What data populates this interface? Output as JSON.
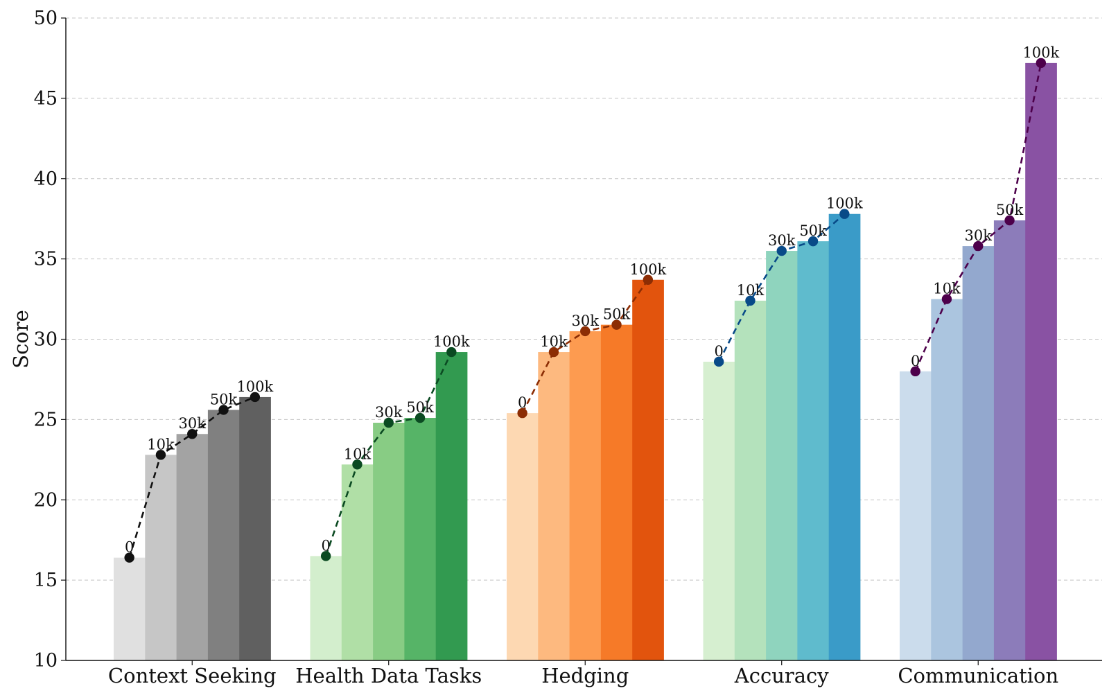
{
  "chart_data": {
    "type": "bar",
    "title": "",
    "xlabel": "",
    "ylabel": "Score",
    "ylim": [
      10,
      50
    ],
    "yticks": [
      10,
      15,
      20,
      25,
      30,
      35,
      40,
      45,
      50
    ],
    "grid": "horizontal dashed",
    "levels": [
      "0",
      "10k",
      "30k",
      "50k",
      "100k"
    ],
    "categories": [
      "Context Seeking",
      "Health Data Tasks",
      "Hedging",
      "Accuracy",
      "Communication"
    ],
    "groups": [
      {
        "category": "Context Seeking",
        "values": [
          16.4,
          22.8,
          24.1,
          25.6,
          26.4
        ],
        "bar_colors": [
          "#e0e0e0",
          "#c6c6c6",
          "#a3a3a3",
          "#808080",
          "#606060"
        ],
        "line_color": "#111111"
      },
      {
        "category": "Health Data Tasks",
        "values": [
          16.5,
          22.2,
          24.8,
          25.1,
          29.2
        ],
        "bar_colors": [
          "#d3eecd",
          "#b0dfa6",
          "#88cc84",
          "#56b467",
          "#329a50"
        ],
        "line_color": "#0b4a22"
      },
      {
        "category": "Hedging",
        "values": [
          25.4,
          29.2,
          30.5,
          30.9,
          33.7
        ],
        "bar_colors": [
          "#fdd8b2",
          "#fdb97f",
          "#fd9b50",
          "#f67a28",
          "#e2540d"
        ],
        "line_color": "#8c2d04"
      },
      {
        "category": "Accuracy",
        "values": [
          28.6,
          32.4,
          35.5,
          36.1,
          37.8
        ],
        "bar_colors": [
          "#d6efd0",
          "#b4e2bc",
          "#8fd4be",
          "#5fbbcd",
          "#3a9bc8"
        ],
        "line_color": "#084a88"
      },
      {
        "category": "Communication",
        "values": [
          28.0,
          32.5,
          35.8,
          37.4,
          47.2
        ],
        "bar_colors": [
          "#cbdcec",
          "#abc5df",
          "#93a8ce",
          "#8c7cba",
          "#8952a3"
        ],
        "line_color": "#4d004b"
      }
    ]
  }
}
